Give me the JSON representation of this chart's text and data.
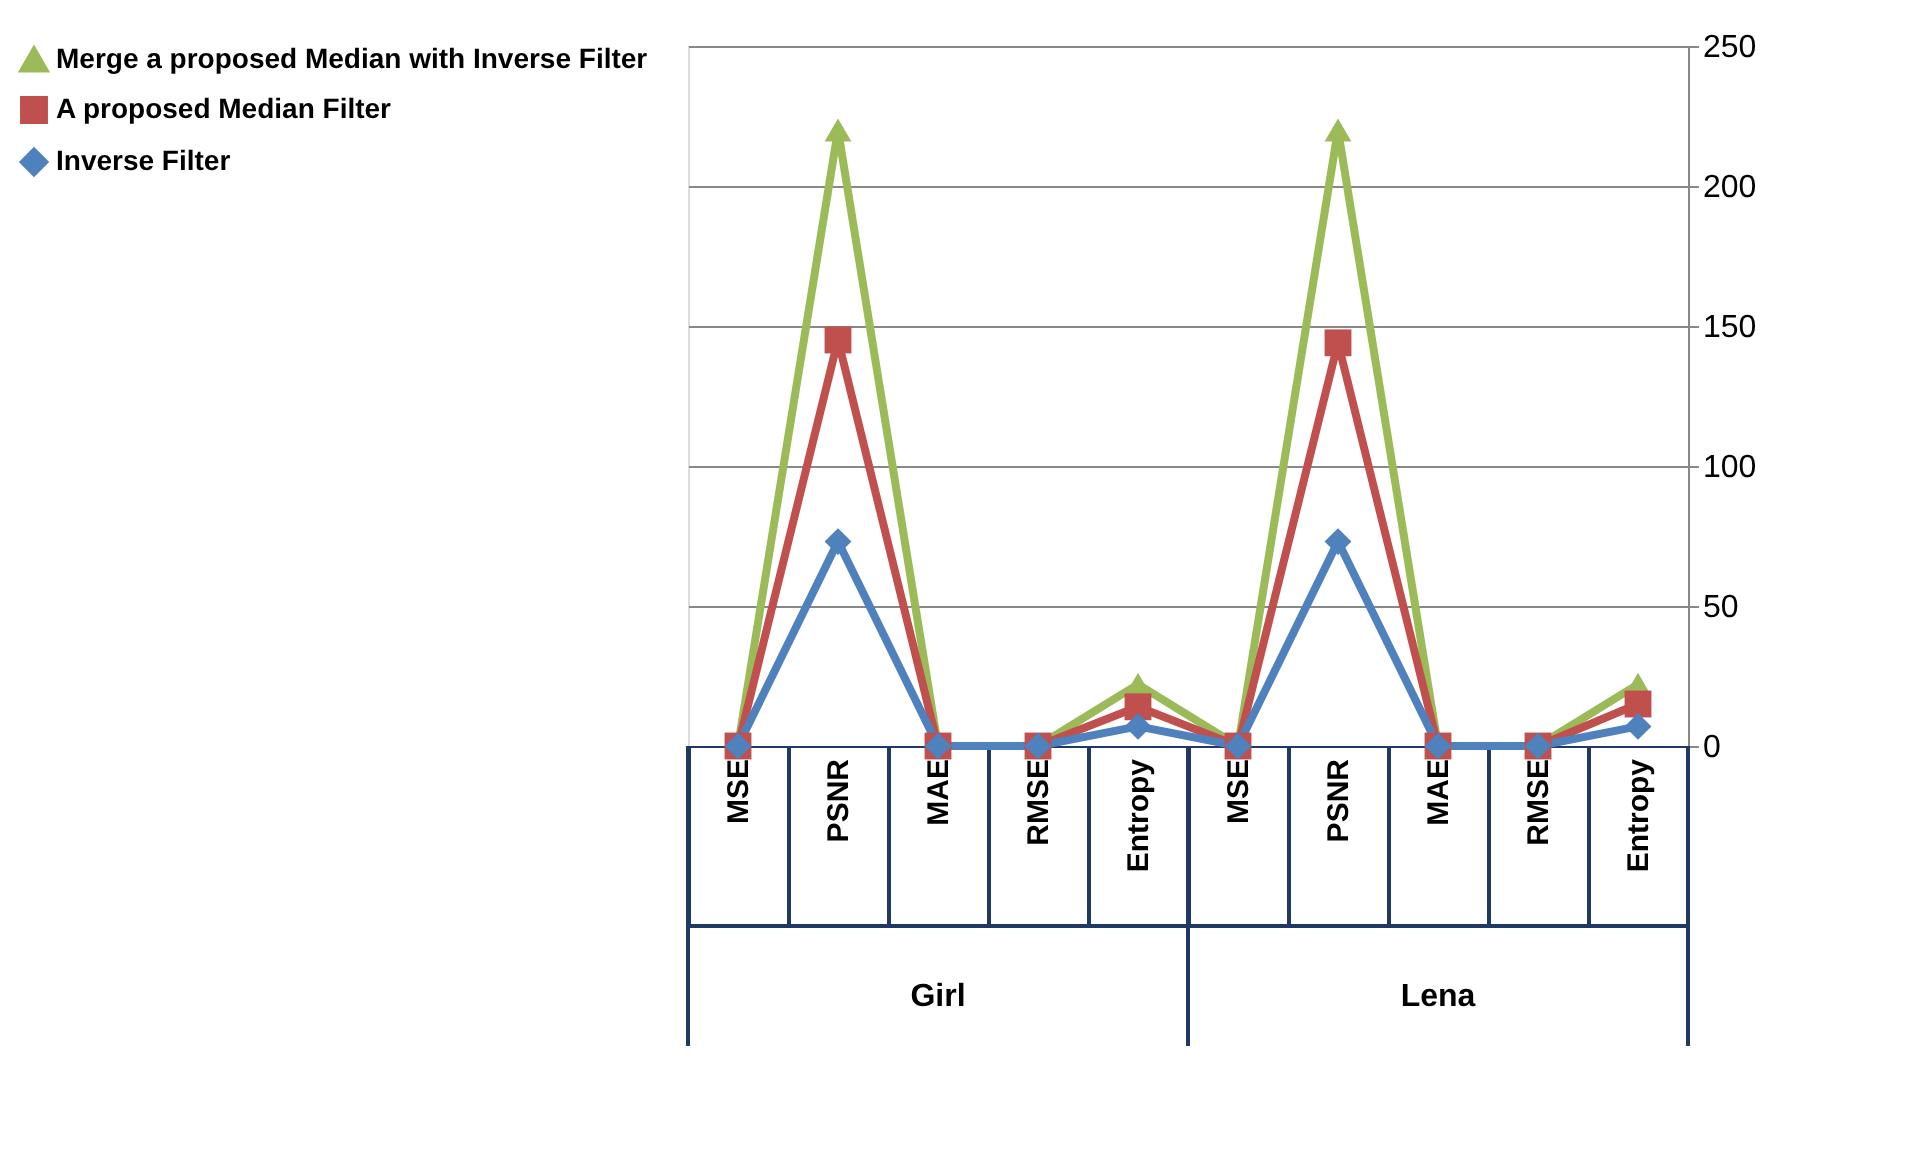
{
  "chart_data": {
    "type": "line",
    "categories": [
      "MSE",
      "PSNR",
      "MAE",
      "RMSE",
      "Entropy",
      "MSE",
      "PSNR",
      "MAE",
      "RMSE",
      "Entropy"
    ],
    "series": [
      {
        "name": "Merge a proposed Median with Inverse Filter",
        "color": "#9bbb59",
        "marker": "triangle",
        "values": [
          0,
          220,
          0,
          0,
          22,
          0,
          220,
          0,
          0,
          22
        ]
      },
      {
        "name": "A proposed Median Filter",
        "color": "#c0504d",
        "marker": "square",
        "values": [
          0,
          145,
          0,
          0,
          14,
          0,
          144,
          0,
          0,
          15
        ]
      },
      {
        "name": "Inverse Filter",
        "color": "#4f81bd",
        "marker": "diamond",
        "values": [
          0,
          73,
          0,
          0,
          7,
          0,
          73,
          0,
          0,
          7
        ]
      }
    ],
    "ylim": [
      0,
      250
    ],
    "yticks": [
      0,
      50,
      100,
      150,
      200,
      250
    ],
    "grid": "y",
    "legend": "left",
    "annotations": [
      "Girl",
      "Lena"
    ]
  }
}
